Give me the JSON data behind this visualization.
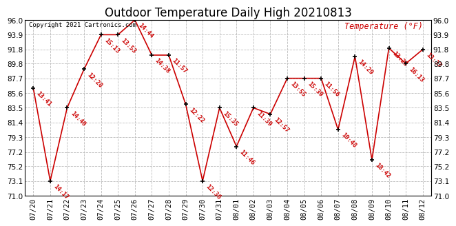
{
  "title": "Outdoor Temperature Daily High 20210813",
  "temp_label": "Temperature (°F)",
  "copyright": "Copyright 2021 Cartronics.com",
  "dates": [
    "07/20",
    "07/21",
    "07/22",
    "07/23",
    "07/24",
    "07/25",
    "07/26",
    "07/27",
    "07/28",
    "07/29",
    "07/30",
    "07/31",
    "08/01",
    "08/02",
    "08/03",
    "08/04",
    "08/05",
    "08/06",
    "08/07",
    "08/08",
    "08/09",
    "08/10",
    "08/11",
    "08/12"
  ],
  "temps": [
    86.3,
    73.1,
    83.5,
    89.0,
    93.9,
    93.9,
    96.0,
    91.0,
    91.0,
    84.0,
    73.1,
    83.5,
    78.0,
    83.5,
    82.6,
    87.7,
    87.7,
    87.7,
    80.4,
    90.8,
    76.1,
    92.0,
    89.8,
    91.8
  ],
  "times": [
    "13:41",
    "14:17",
    "14:40",
    "12:28",
    "15:13",
    "13:53",
    "14:44",
    "14:38",
    "11:57",
    "12:22",
    "12:36",
    "15:35",
    "11:46",
    "11:39",
    "12:57",
    "13:55",
    "15:39",
    "11:56",
    "10:48",
    "14:29",
    "18:42",
    "13:25",
    "16:13",
    "13:37"
  ],
  "ylim": [
    71.0,
    96.0
  ],
  "yticks": [
    71.0,
    73.1,
    75.2,
    77.2,
    79.3,
    81.4,
    83.5,
    85.6,
    87.7,
    89.8,
    91.8,
    93.9,
    96.0
  ],
  "ytick_labels": [
    "71.0",
    "73.1",
    "75.2",
    "77.2",
    "79.3",
    "81.4",
    "83.5",
    "85.6",
    "87.7",
    "89.8",
    "91.8",
    "93.9",
    "96.0"
  ],
  "line_color": "#cc0000",
  "marker_color": "#000000",
  "background_color": "#ffffff",
  "grid_color": "#bbbbbb",
  "title_fontsize": 12,
  "annotation_fontsize": 6.5,
  "tick_fontsize": 7.5,
  "copyright_color": "#000000",
  "temp_label_color": "#cc0000",
  "border_color": "#000000"
}
